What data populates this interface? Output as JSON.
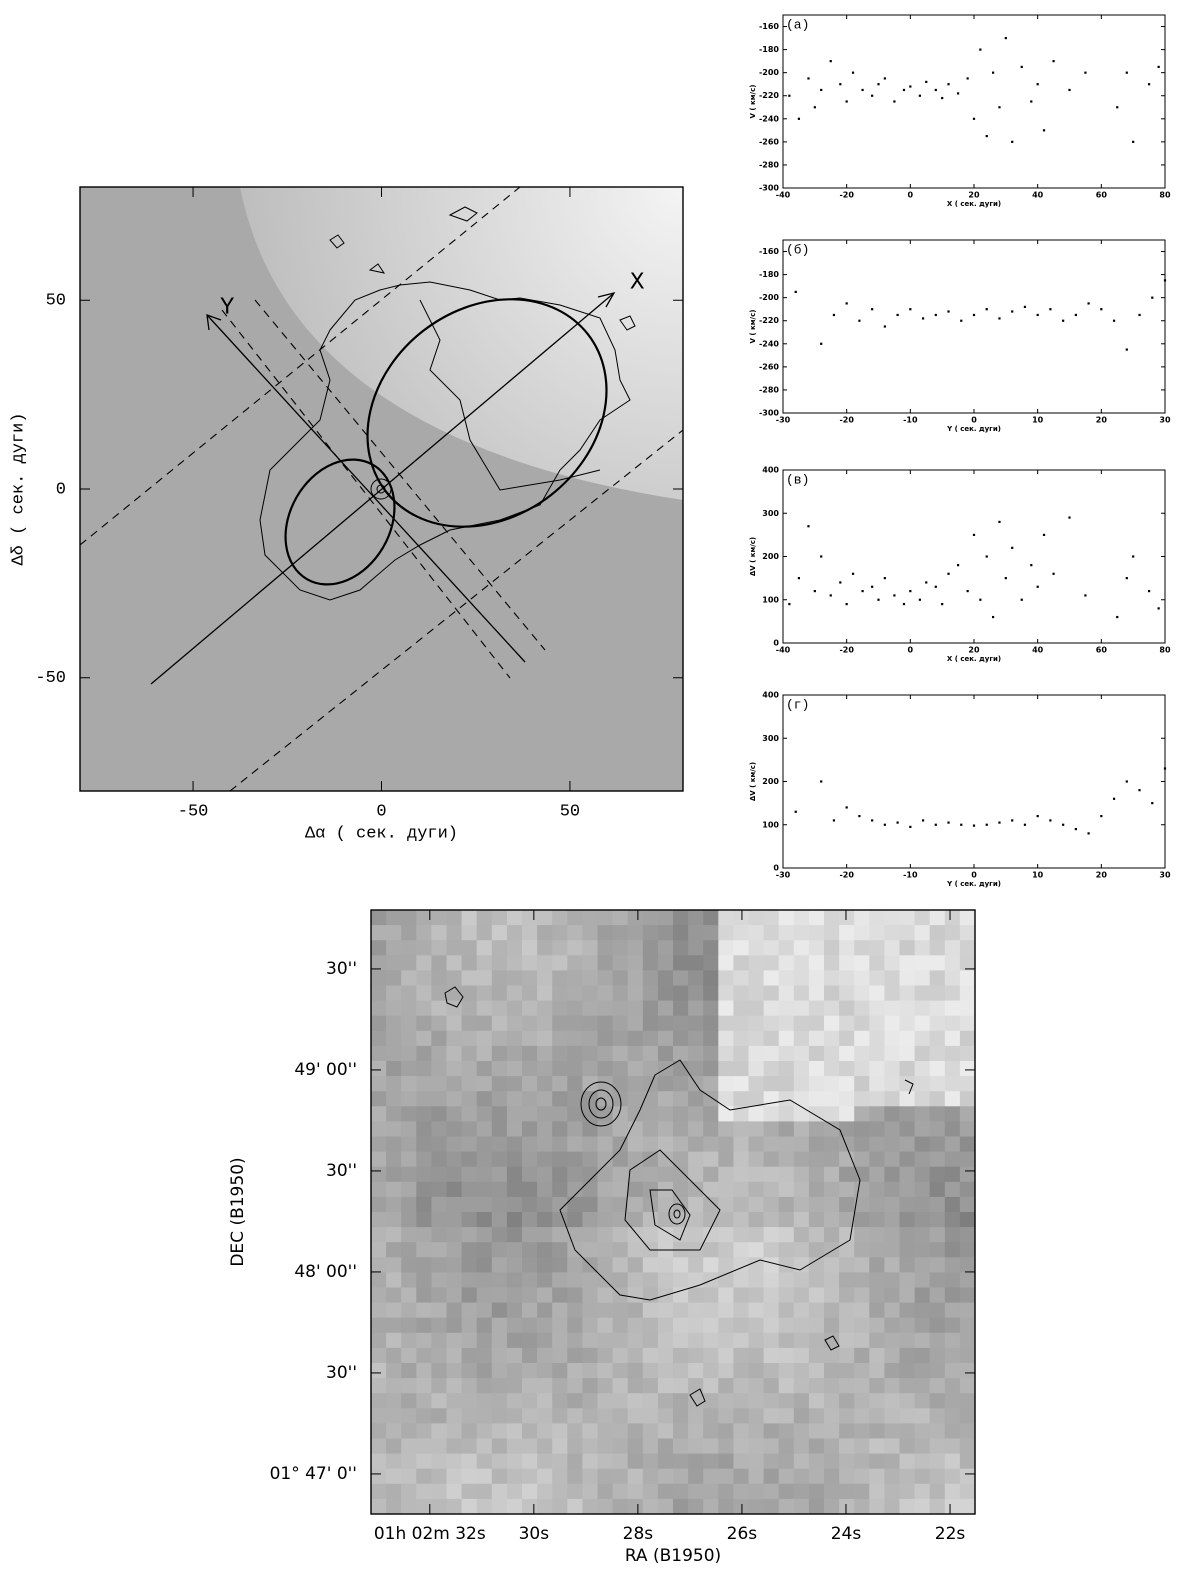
{
  "chart_data": [
    {
      "type": "contour",
      "xlabel": "Δα  ( сек. дуги)",
      "ylabel": "Δδ  ( сек. дуги)",
      "annotations": [
        "X",
        "Y"
      ],
      "xlim": [
        -80,
        80
      ],
      "ylim": [
        -80,
        80
      ],
      "xticks": [
        -50,
        0,
        50
      ],
      "yticks": [
        -50,
        0,
        50
      ]
    },
    {
      "type": "scatter",
      "label": "(а)",
      "xlabel": "X ( сек. дуги)",
      "ylabel": "V ( км/с)",
      "color": "#000000",
      "x": [
        -38,
        -35,
        -32,
        -30,
        -28,
        -25,
        -22,
        -20,
        -18,
        -15,
        -12,
        -10,
        -8,
        -5,
        -2,
        0,
        3,
        5,
        8,
        10,
        12,
        15,
        18,
        20,
        22,
        24,
        26,
        28,
        30,
        32,
        35,
        38,
        40,
        42,
        45,
        50,
        55,
        65,
        68,
        70,
        75,
        78
      ],
      "values": [
        -220,
        -240,
        -205,
        -230,
        -215,
        -190,
        -210,
        -225,
        -200,
        -215,
        -220,
        -210,
        -205,
        -225,
        -215,
        -212,
        -220,
        -208,
        -215,
        -222,
        -210,
        -218,
        -205,
        -240,
        -180,
        -255,
        -200,
        -230,
        -170,
        -260,
        -195,
        -225,
        -210,
        -250,
        -190,
        -215,
        -200,
        -230,
        -200,
        -260,
        -210,
        -195
      ],
      "xlim": [
        -40,
        80
      ],
      "ylim": [
        -300,
        -150
      ],
      "xticks": [
        -40,
        -20,
        0,
        20,
        40,
        60,
        80
      ],
      "yticks": [
        -300,
        -280,
        -260,
        -240,
        -220,
        -200,
        -180,
        -160
      ]
    },
    {
      "type": "scatter",
      "label": "(б)",
      "xlabel": "Y ( сек. дуги)",
      "ylabel": "V ( км/с)",
      "color": "#000000",
      "x": [
        -28,
        -24,
        -22,
        -20,
        -18,
        -16,
        -14,
        -12,
        -10,
        -8,
        -6,
        -4,
        -2,
        0,
        2,
        4,
        6,
        8,
        10,
        12,
        14,
        16,
        18,
        20,
        22,
        24,
        26,
        28,
        30
      ],
      "values": [
        -195,
        -240,
        -215,
        -205,
        -220,
        -210,
        -225,
        -215,
        -210,
        -218,
        -215,
        -212,
        -220,
        -215,
        -210,
        -218,
        -212,
        -208,
        -215,
        -210,
        -220,
        -215,
        -205,
        -210,
        -220,
        -245,
        -215,
        -200,
        -185
      ],
      "xlim": [
        -30,
        30
      ],
      "ylim": [
        -300,
        -150
      ],
      "xticks": [
        -30,
        -20,
        -10,
        0,
        10,
        20,
        30
      ],
      "yticks": [
        -300,
        -280,
        -260,
        -240,
        -220,
        -200,
        -180,
        -160
      ]
    },
    {
      "type": "scatter",
      "label": "(в)",
      "xlabel": "X ( сек. дуги)",
      "ylabel": "ΔV ( км/с)",
      "color": "#000000",
      "x": [
        -38,
        -35,
        -32,
        -30,
        -28,
        -25,
        -22,
        -20,
        -18,
        -15,
        -12,
        -10,
        -8,
        -5,
        -2,
        0,
        3,
        5,
        8,
        10,
        12,
        15,
        18,
        20,
        22,
        24,
        26,
        28,
        30,
        32,
        35,
        38,
        40,
        42,
        45,
        50,
        55,
        65,
        68,
        70,
        75,
        78
      ],
      "values": [
        90,
        150,
        270,
        120,
        200,
        110,
        140,
        90,
        160,
        120,
        130,
        100,
        150,
        110,
        90,
        120,
        100,
        140,
        130,
        90,
        160,
        180,
        120,
        250,
        100,
        200,
        60,
        280,
        150,
        220,
        100,
        180,
        130,
        250,
        160,
        290,
        110,
        60,
        150,
        200,
        120,
        80
      ],
      "xlim": [
        -40,
        80
      ],
      "ylim": [
        0,
        400
      ],
      "xticks": [
        -40,
        -20,
        0,
        20,
        40,
        60,
        80
      ],
      "yticks": [
        0,
        100,
        200,
        300,
        400
      ]
    },
    {
      "type": "scatter",
      "label": "(г)",
      "xlabel": "Y ( сек. дуги)",
      "ylabel": "ΔV ( км/с)",
      "color": "#000000",
      "x": [
        -28,
        -24,
        -22,
        -20,
        -18,
        -16,
        -14,
        -12,
        -10,
        -8,
        -6,
        -4,
        -2,
        0,
        2,
        4,
        6,
        8,
        10,
        12,
        14,
        16,
        18,
        20,
        22,
        24,
        26,
        28,
        30
      ],
      "values": [
        130,
        200,
        110,
        140,
        120,
        110,
        100,
        105,
        95,
        110,
        100,
        105,
        100,
        98,
        100,
        105,
        110,
        100,
        120,
        110,
        100,
        90,
        80,
        120,
        160,
        200,
        180,
        150,
        230
      ],
      "xlim": [
        -30,
        30
      ],
      "ylim": [
        0,
        400
      ],
      "xticks": [
        -30,
        -20,
        -10,
        0,
        10,
        20,
        30
      ],
      "yticks": [
        0,
        100,
        200,
        300,
        400
      ]
    },
    {
      "type": "image",
      "xlabel": "RA  (B1950)",
      "ylabel": "DEC  (B1950)",
      "xlim": [
        33.13,
        21.52
      ],
      "ylim": [
        -11.9,
        167.5
      ],
      "xticks": [
        {
          "value": 32,
          "label": "01h 02m 32s"
        },
        {
          "value": 30,
          "label": "30s"
        },
        {
          "value": 28,
          "label": "28s"
        },
        {
          "value": 26,
          "label": "26s"
        },
        {
          "value": 24,
          "label": "24s"
        },
        {
          "value": 22,
          "label": "22s"
        }
      ],
      "yticks": [
        {
          "value": 0,
          "label": "01° 47' 0''"
        },
        {
          "value": 30,
          "label": "30''"
        },
        {
          "value": 60,
          "label": "48' 00''"
        },
        {
          "value": 90,
          "label": "30''"
        },
        {
          "value": 120,
          "label": "49' 00''"
        },
        {
          "value": 150,
          "label": "30''"
        }
      ]
    }
  ]
}
